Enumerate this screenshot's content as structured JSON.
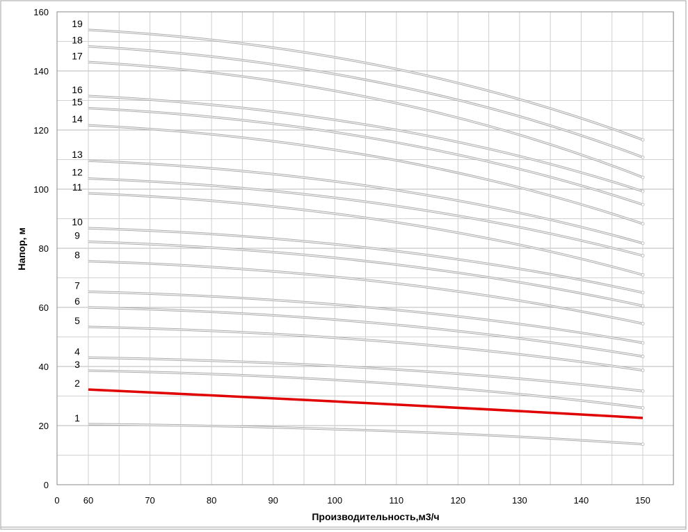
{
  "chart_data": {
    "type": "line",
    "title": "",
    "xlabel": "Производительность,м3/ч",
    "ylabel": "Напор, м",
    "xlim": [
      0,
      155
    ],
    "ylim": [
      0,
      160
    ],
    "x_tick_labels": [
      "0",
      "60",
      "70",
      "80",
      "90",
      "100",
      "110",
      "120",
      "130",
      "140",
      "150"
    ],
    "y_tick_labels": [
      "0",
      "20",
      "40",
      "60",
      "80",
      "100",
      "120",
      "140",
      "160"
    ],
    "grid": true,
    "highlight_color": "#e00000",
    "curve_color": "#a8a8a8",
    "x": [
      60,
      150
    ],
    "series": [
      {
        "name": "1",
        "values": [
          20.5,
          13.7
        ]
      },
      {
        "name": "2",
        "values": [
          32.2,
          22.6
        ],
        "highlight": true
      },
      {
        "name": "3",
        "values": [
          38.6,
          26.0
        ]
      },
      {
        "name": "4",
        "values": [
          43.0,
          31.7
        ]
      },
      {
        "name": "5",
        "values": [
          53.4,
          38.7
        ]
      },
      {
        "name": "6",
        "values": [
          60.0,
          43.4
        ]
      },
      {
        "name": "7",
        "values": [
          65.3,
          48.0
        ]
      },
      {
        "name": "8",
        "values": [
          75.6,
          54.5
        ]
      },
      {
        "name": "9",
        "values": [
          82.2,
          60.5
        ]
      },
      {
        "name": "10",
        "values": [
          86.8,
          65.0
        ]
      },
      {
        "name": "11",
        "values": [
          98.6,
          71.0
        ]
      },
      {
        "name": "12",
        "values": [
          103.6,
          77.5
        ]
      },
      {
        "name": "13",
        "values": [
          109.6,
          81.7
        ]
      },
      {
        "name": "14",
        "values": [
          121.6,
          88.3
        ]
      },
      {
        "name": "15",
        "values": [
          127.4,
          94.8
        ]
      },
      {
        "name": "16",
        "values": [
          131.5,
          99.3
        ]
      },
      {
        "name": "17",
        "values": [
          143.0,
          104.0
        ]
      },
      {
        "name": "18",
        "values": [
          148.3,
          110.8
        ]
      },
      {
        "name": "19",
        "values": [
          153.9,
          116.7
        ]
      }
    ]
  }
}
